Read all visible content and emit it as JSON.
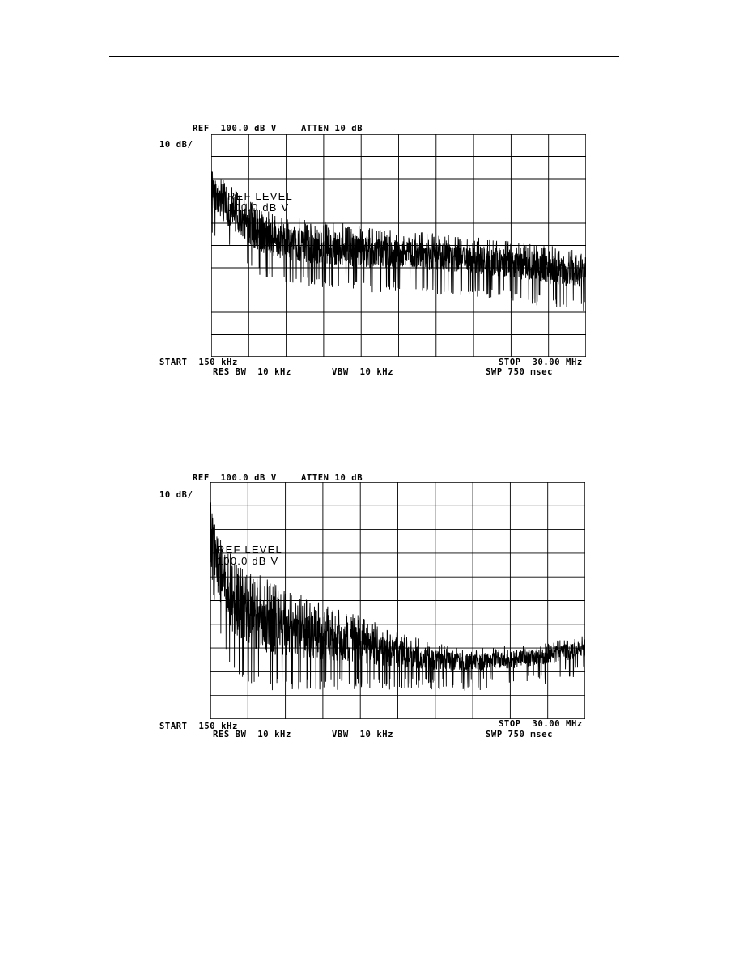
{
  "chart_data": [
    {
      "type": "line",
      "title": "",
      "header": {
        "ref": "REF  100.0 dB V",
        "atten": "ATTEN 10 dB"
      },
      "scale_label": "10 dB/",
      "overlay": {
        "line1": "REF LEVEL",
        "line2": "100.0 dB V"
      },
      "footer": {
        "start": "START  150 kHz",
        "stop": "STOP  30.00 MHz",
        "res_bw": "RES BW  10 kHz",
        "vbw": "VBW  10 kHz",
        "swp": "SWP 750 msec"
      },
      "x_unit": "MHz",
      "xlim": [
        0.15,
        30.0
      ],
      "ylim": [
        0,
        100
      ],
      "divisions": {
        "x": 10,
        "y": 10
      },
      "grid": true,
      "series": [
        {
          "values_note": "envelope of noisy spectrum",
          "x": [
            0.15,
            1,
            2,
            3,
            4,
            6,
            9,
            12,
            15,
            18,
            21,
            24,
            27,
            30
          ],
          "peak": [
            84,
            80,
            76,
            71,
            67,
            63,
            61,
            59,
            57,
            56,
            54,
            52,
            50,
            47
          ],
          "floor": [
            60,
            55,
            50,
            45,
            40,
            37,
            35,
            34,
            34,
            33,
            32,
            30,
            27,
            25
          ]
        }
      ]
    },
    {
      "type": "line",
      "title": "",
      "header": {
        "ref": "REF  100.0 dB V",
        "atten": "ATTEN 10 dB"
      },
      "scale_label": "10 dB/",
      "overlay": {
        "line1": "REF LEVEL",
        "line2": "100.0 dB V"
      },
      "footer": {
        "start": "START  150 kHz",
        "stop": "STOP  30.00 MHz",
        "res_bw": "RES BW  10 kHz",
        "vbw": "VBW  10 kHz",
        "swp": "SWP 750 msec"
      },
      "x_unit": "MHz",
      "xlim": [
        0.15,
        30.0
      ],
      "ylim": [
        0,
        100
      ],
      "divisions": {
        "x": 10,
        "y": 10
      },
      "grid": true,
      "series": [
        {
          "x": [
            0.15,
            0.5,
            1,
            2,
            3,
            4,
            5,
            6,
            8,
            10,
            12,
            15,
            18,
            21,
            24,
            27,
            30
          ],
          "peak": [
            94,
            84,
            76,
            68,
            64,
            61,
            58,
            56,
            51,
            47,
            44,
            37,
            32,
            30,
            31,
            33,
            36
          ],
          "floor": [
            70,
            50,
            38,
            25,
            20,
            18,
            17,
            17,
            17,
            17,
            17,
            17,
            17,
            17,
            18,
            20,
            23
          ]
        }
      ]
    }
  ]
}
